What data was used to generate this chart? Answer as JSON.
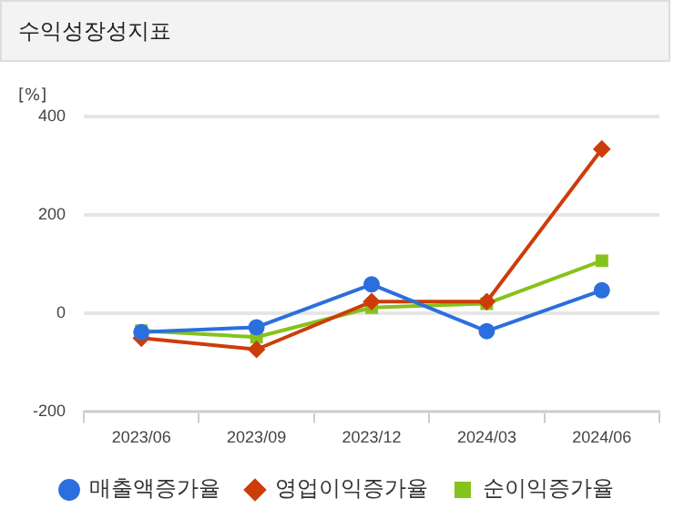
{
  "chart_data": {
    "type": "line",
    "title": "수익성장성지표",
    "ylabel": "[%]",
    "categories": [
      "2023/06",
      "2023/09",
      "2023/12",
      "2024/03",
      "2024/06"
    ],
    "series": [
      {
        "name": "매출액증가율",
        "color": "#2b6fde",
        "marker": "circle",
        "values": [
          -38,
          -28,
          59,
          -36,
          47
        ]
      },
      {
        "name": "영업이익증가율",
        "color": "#cc3d0a",
        "marker": "diamond",
        "values": [
          -50,
          -73,
          24,
          24,
          334
        ]
      },
      {
        "name": "순이익증가율",
        "color": "#86c21c",
        "marker": "square",
        "values": [
          -35,
          -48,
          12,
          20,
          107
        ]
      }
    ],
    "ylim": [
      -200,
      400
    ],
    "yticks": [
      -200,
      0,
      200,
      400
    ],
    "grid": "y",
    "legend": "bottom"
  }
}
